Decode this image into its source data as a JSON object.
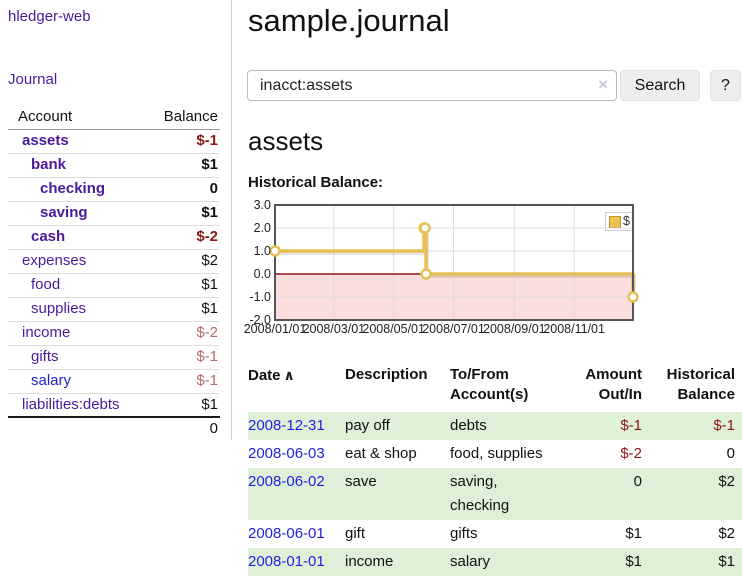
{
  "colors": {
    "link_purple": "#4a1a9c",
    "link_blue": "#2222dd",
    "negative_red": "#8c1717",
    "negative_light_red": "#b36b6b",
    "row_shade_green": "#dff0d8",
    "button_gray": "#ededed"
  },
  "sidebar": {
    "brand": "hledger-web",
    "nav": "Journal",
    "account_header": "Account",
    "balance_header": "Balance",
    "accounts": [
      {
        "name": "assets",
        "balance": "$-1",
        "indent": 0,
        "bold": true,
        "neg": "strong"
      },
      {
        "name": "bank",
        "balance": "$1",
        "indent": 1,
        "bold": true,
        "neg": "none"
      },
      {
        "name": "checking",
        "balance": "0",
        "indent": 2,
        "bold": true,
        "neg": "none"
      },
      {
        "name": "saving",
        "balance": "$1",
        "indent": 2,
        "bold": true,
        "neg": "none"
      },
      {
        "name": "cash",
        "balance": "$-2",
        "indent": 1,
        "bold": true,
        "neg": "strong"
      },
      {
        "name": "expenses",
        "balance": "$2",
        "indent": 0,
        "bold": false,
        "neg": "none"
      },
      {
        "name": "food",
        "balance": "$1",
        "indent": 1,
        "bold": false,
        "neg": "none"
      },
      {
        "name": "supplies",
        "balance": "$1",
        "indent": 1,
        "bold": false,
        "neg": "none"
      },
      {
        "name": "income",
        "balance": "$-2",
        "indent": 0,
        "bold": false,
        "neg": "light"
      },
      {
        "name": "gifts",
        "balance": "$-1",
        "indent": 1,
        "bold": false,
        "neg": "light"
      },
      {
        "name": "salary",
        "balance": "$-1",
        "indent": 1,
        "bold": false,
        "neg": "light",
        "unvisited": true
      },
      {
        "name": "liabilities:debts",
        "balance": "$1",
        "indent": 0,
        "bold": false,
        "neg": "none"
      }
    ],
    "total": "0"
  },
  "header": {
    "title": "sample.journal"
  },
  "search": {
    "value": "inacct:assets",
    "clear_icon": "×",
    "button": "Search",
    "help": "?"
  },
  "account_page": {
    "heading": "assets",
    "chart_title": "Historical Balance:"
  },
  "chart_data": {
    "type": "line",
    "style": "step",
    "title": "Historical Balance",
    "series": [
      {
        "name": "$",
        "dates": [
          "2008-01-01",
          "2008-06-01",
          "2008-06-02",
          "2008-06-03",
          "2008-12-31"
        ],
        "x_days": [
          0,
          152,
          153,
          154,
          365
        ],
        "values": [
          1,
          2,
          2,
          0,
          -1
        ]
      }
    ],
    "ylim": [
      -2,
      3
    ],
    "y_ticks": [
      {
        "label": "3.0",
        "value": 3
      },
      {
        "label": "2.0",
        "value": 2
      },
      {
        "label": "1.0",
        "value": 1
      },
      {
        "label": "0.0",
        "value": 0
      },
      {
        "label": "-1.0",
        "value": -1
      },
      {
        "label": "-2.0",
        "value": -2
      }
    ],
    "x_ticks": [
      {
        "label": "2008/01/01",
        "day": 0
      },
      {
        "label": "2008/03/01",
        "day": 60
      },
      {
        "label": "2008/05/01",
        "day": 121
      },
      {
        "label": "2008/07/01",
        "day": 182
      },
      {
        "label": "2008/09/01",
        "day": 244
      },
      {
        "label": "2008/11/01",
        "day": 305
      }
    ],
    "x_range_days": 365,
    "legend": {
      "label": "$",
      "position": "top-right"
    },
    "grid": true,
    "line_color": "#e6c054",
    "marker_fill": "#ffffff",
    "negative_region_fill": "#fbdede",
    "zero_line_color": "#8c1717",
    "grid_color": "#dddddd",
    "border_color": "#545454"
  },
  "register": {
    "columns": [
      {
        "lines": [
          "Date"
        ]
      },
      {
        "lines": [
          "Description"
        ]
      },
      {
        "lines": [
          "To/From",
          "Account(s)"
        ]
      },
      {
        "lines": [
          "Amount",
          "Out/In"
        ]
      },
      {
        "lines": [
          "Historical",
          "Balance"
        ]
      }
    ],
    "sort_icon": "∧",
    "rows": [
      {
        "date": "2008-12-31",
        "description": "pay off",
        "accounts": "debts",
        "amount": "$-1",
        "balance": "$-1",
        "amount_neg": true,
        "balance_neg": true,
        "shaded": true
      },
      {
        "date": "2008-06-03",
        "description": "eat & shop",
        "accounts": "food, supplies",
        "amount": "$-2",
        "balance": "0",
        "amount_neg": true,
        "balance_neg": false,
        "shaded": false
      },
      {
        "date": "2008-06-02",
        "description": "save",
        "accounts": "saving, checking",
        "amount": "0",
        "balance": "$2",
        "amount_neg": false,
        "balance_neg": false,
        "shaded": true
      },
      {
        "date": "2008-06-01",
        "description": "gift",
        "accounts": "gifts",
        "amount": "$1",
        "balance": "$2",
        "amount_neg": false,
        "balance_neg": false,
        "shaded": false
      },
      {
        "date": "2008-01-01",
        "description": "income",
        "accounts": "salary",
        "amount": "$1",
        "balance": "$1",
        "amount_neg": false,
        "balance_neg": false,
        "shaded": true
      }
    ]
  }
}
